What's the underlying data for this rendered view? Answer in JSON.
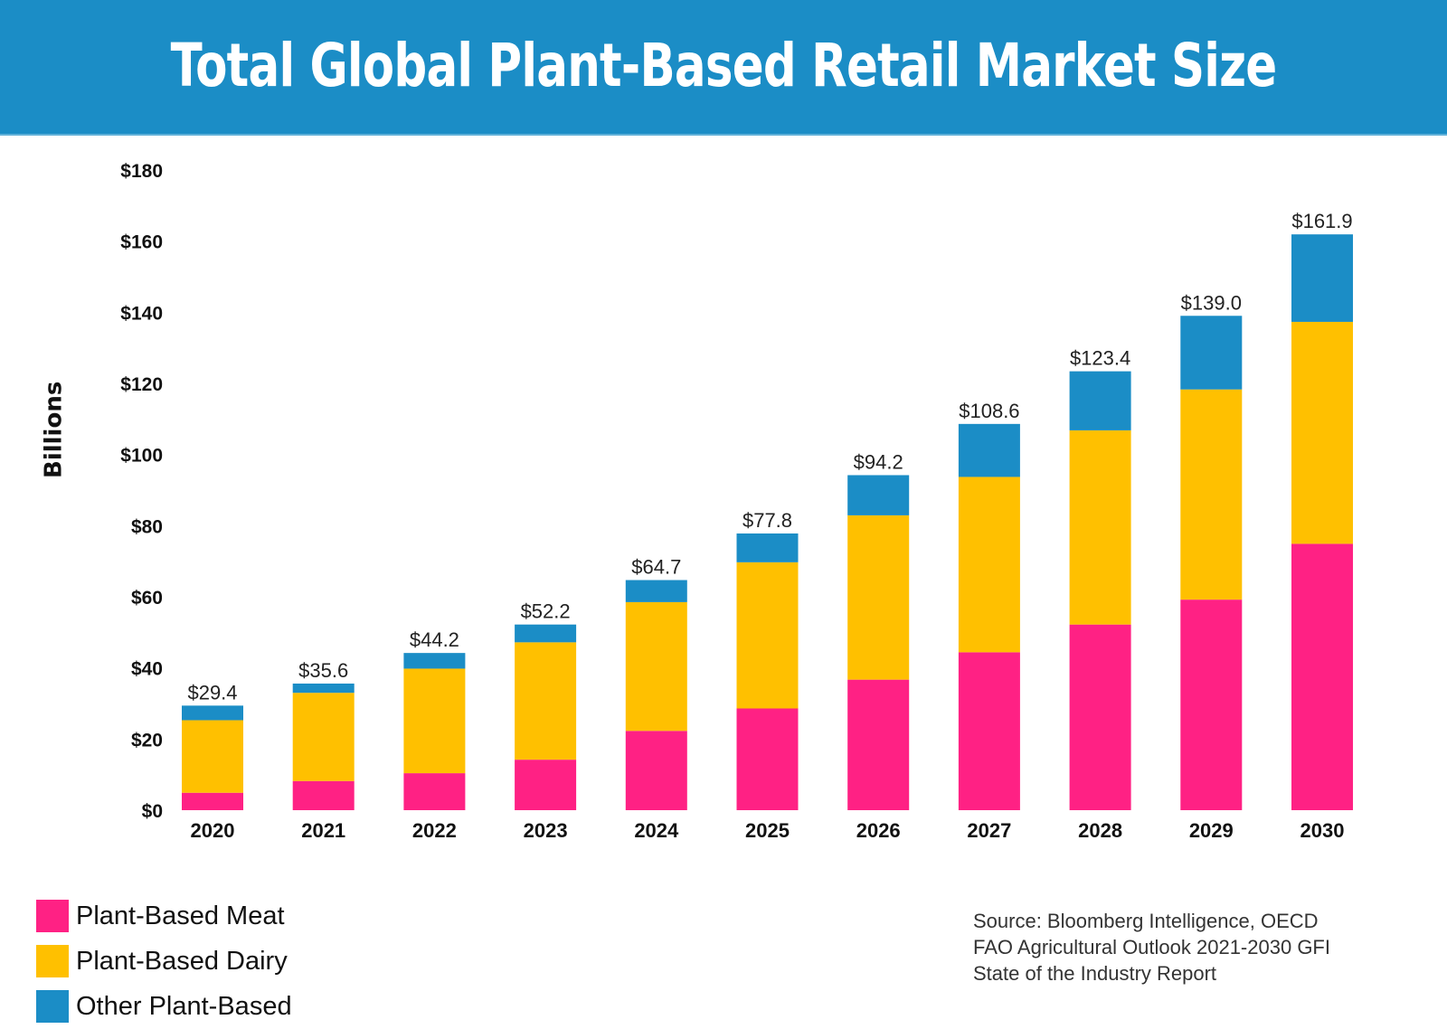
{
  "header": {
    "title": "Total Global Plant-Based Retail Market Size"
  },
  "colors": {
    "banner": "#1b8dc6",
    "meat": "#ff2184",
    "dairy": "#ffc000",
    "other": "#1b8dc6"
  },
  "chart_data": {
    "type": "bar",
    "stacked": true,
    "title": "Total Global Plant-Based Retail Market Size",
    "xlabel": "",
    "ylabel": "Billions",
    "ylim": [
      0,
      180
    ],
    "yticks": [
      0,
      20,
      40,
      60,
      80,
      100,
      120,
      140,
      160,
      180
    ],
    "ytick_labels": [
      "$0",
      "$20",
      "$40",
      "$60",
      "$80",
      "$100",
      "$120",
      "$140",
      "$160",
      "$180"
    ],
    "grid": false,
    "legend_position": "bottom-left",
    "categories": [
      "2020",
      "2021",
      "2022",
      "2023",
      "2024",
      "2025",
      "2026",
      "2027",
      "2028",
      "2029",
      "2030"
    ],
    "series": [
      {
        "name": "Plant-Based Meat",
        "color": "#ff2184",
        "values": [
          4.9,
          8.2,
          10.4,
          14.2,
          22.3,
          28.6,
          36.7,
          44.4,
          52.2,
          59.2,
          74.9
        ]
      },
      {
        "name": "Plant-Based Dairy",
        "color": "#ffc000",
        "values": [
          20.4,
          24.8,
          29.4,
          33.0,
          36.2,
          41.1,
          46.2,
          49.3,
          54.6,
          59.1,
          62.4
        ]
      },
      {
        "name": "Other Plant-Based",
        "color": "#1b8dc6",
        "values": [
          4.1,
          2.6,
          4.4,
          5.0,
          6.2,
          8.1,
          11.3,
          14.9,
          16.6,
          20.7,
          24.6
        ]
      }
    ],
    "totals": [
      29.4,
      35.6,
      44.2,
      52.2,
      64.7,
      77.8,
      94.2,
      108.6,
      123.4,
      139.0,
      161.9
    ],
    "total_labels": [
      "$29.4",
      "$35.6",
      "$44.2",
      "$52.2",
      "$64.7",
      "$77.8",
      "$94.2",
      "$108.6",
      "$123.4",
      "$139.0",
      "$161.9"
    ]
  },
  "legend": {
    "items": [
      {
        "label": "Plant-Based Meat",
        "color": "#ff2184"
      },
      {
        "label": "Plant-Based Dairy",
        "color": "#ffc000"
      },
      {
        "label": "Other Plant-Based",
        "color": "#1b8dc6"
      }
    ]
  },
  "source": {
    "lines": [
      "Source: Bloomberg Intelligence, OECD",
      "FAO Agricultural Outlook 2021-2030 GFI",
      "State of the Industry Report"
    ]
  }
}
